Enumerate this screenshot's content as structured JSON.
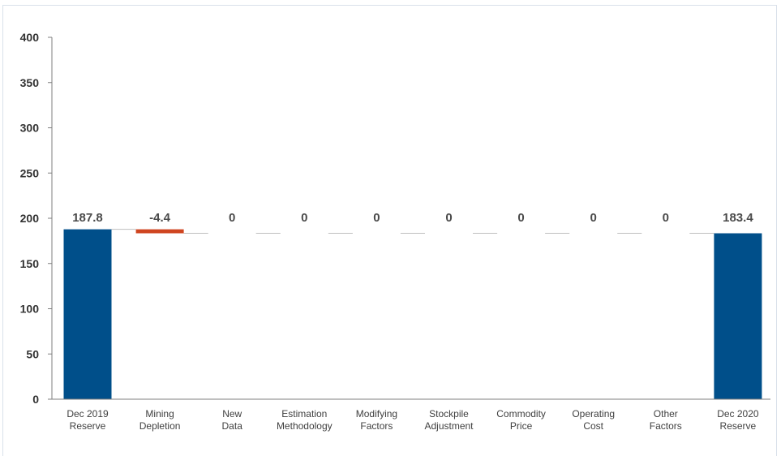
{
  "chart_data": {
    "type": "bar",
    "subtype": "waterfall",
    "categories": [
      [
        "Dec 2019",
        "Reserve"
      ],
      [
        "Mining",
        "Depletion"
      ],
      [
        "New",
        "Data"
      ],
      [
        "Estimation",
        "Methodology"
      ],
      [
        "Modifying",
        "Factors"
      ],
      [
        "Stockpile",
        "Adjustment"
      ],
      [
        "Commodity",
        "Price"
      ],
      [
        "Operating",
        "Cost"
      ],
      [
        "Other",
        "Factors"
      ],
      [
        "Dec 2020",
        "Reserve"
      ]
    ],
    "values": [
      187.8,
      -4.4,
      0,
      0,
      0,
      0,
      0,
      0,
      0,
      183.4
    ],
    "data_labels": [
      "187.8",
      "-4.4",
      "0",
      "0",
      "0",
      "0",
      "0",
      "0",
      "0",
      "183.4"
    ],
    "bar_kinds": [
      "total",
      "delta",
      "delta",
      "delta",
      "delta",
      "delta",
      "delta",
      "delta",
      "delta",
      "total"
    ],
    "yticks": [
      "0",
      "50",
      "100",
      "150",
      "200",
      "250",
      "300",
      "350",
      "400"
    ],
    "ylim": [
      0,
      400
    ],
    "title": "",
    "xlabel": "",
    "ylabel": "",
    "grid": false,
    "legend": "none",
    "colors": {
      "total": "#004f8a",
      "decrease": "#cf4520",
      "connector": "#bfbfbf",
      "axis": "#7f7f7f"
    }
  }
}
